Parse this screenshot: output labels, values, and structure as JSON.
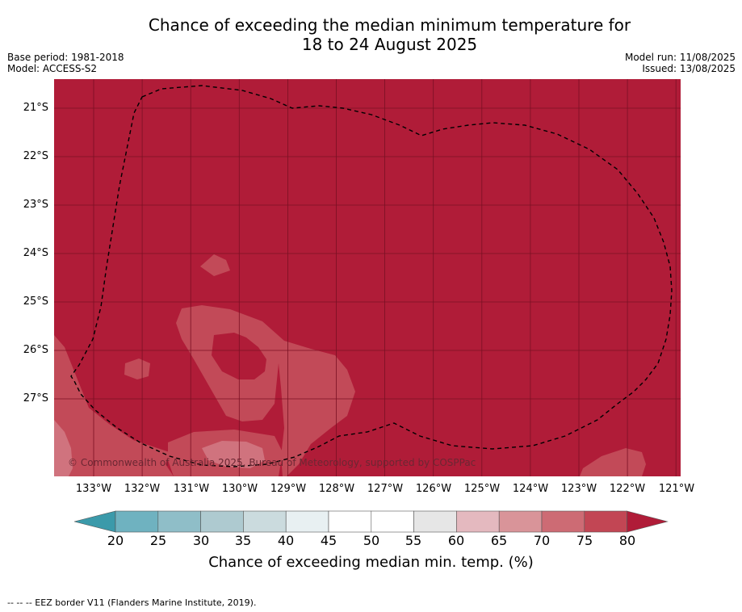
{
  "header": {
    "title_line1": "Chance of exceeding the median minimum temperature for",
    "title_line2": "18 to 24 August 2025",
    "base_period": "Base period: 1981-2018",
    "model": "Model: ACCESS-S2",
    "model_run": "Model run: 11/08/2025",
    "issued": "Issued: 13/08/2025"
  },
  "map": {
    "latitude_labels": [
      "21°S",
      "22°S",
      "23°S",
      "24°S",
      "25°S",
      "26°S",
      "27°S"
    ],
    "longitude_labels": [
      "133°W",
      "132°W",
      "131°W",
      "130°W",
      "129°W",
      "128°W",
      "127°W",
      "126°W",
      "125°W",
      "124°W",
      "123°W",
      "122°W",
      "121°W"
    ],
    "copyright": "© Commonwealth of Australia 2025, Bureau of Meteorology, supported by COSPPac",
    "border_style": "dashed",
    "colors": {
      "dominant_fill": "#b01c38",
      "band_70_75": "#c24a58",
      "band_65_70": "#d0737e"
    }
  },
  "colorbar": {
    "ticks": [
      "20",
      "25",
      "30",
      "35",
      "40",
      "45",
      "50",
      "55",
      "60",
      "65",
      "70",
      "75",
      "80"
    ],
    "colors": [
      "#3b9aaa",
      "#6fb2c0",
      "#8fbec8",
      "#aecad0",
      "#cbdbde",
      "#e8f0f2",
      "#ffffff",
      "#ffffff",
      "#e6e6e6",
      "#e4b9bf",
      "#d99499",
      "#cd6b74",
      "#c24654",
      "#b01c38"
    ],
    "label": "Chance of exceeding median min. temp. (%)"
  },
  "footnote": "--  --  -- EEZ border V11 (Flanders Marine Institute, 2019)."
}
